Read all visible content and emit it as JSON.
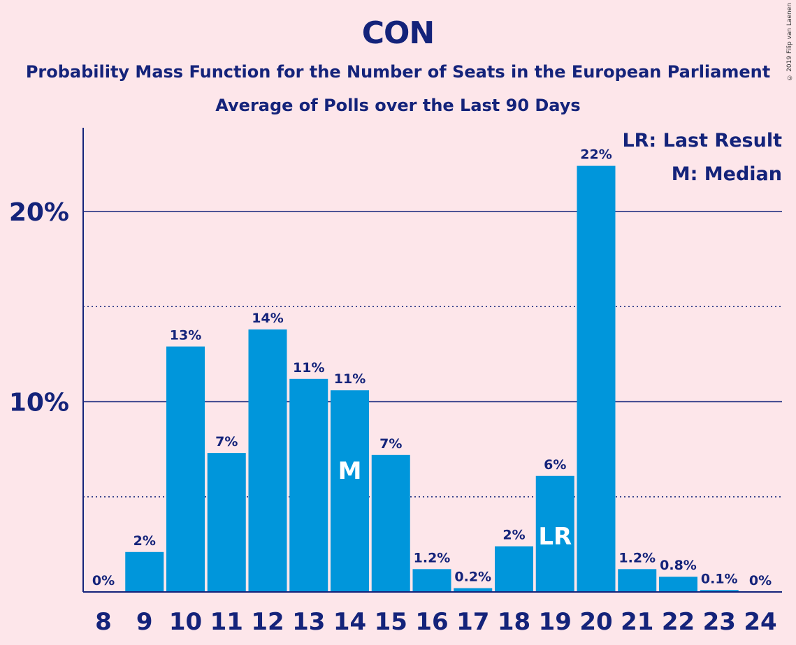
{
  "chart_data": {
    "type": "bar",
    "title": "CON",
    "subtitle": "Probability Mass Function for the Number of Seats in the European Parliament",
    "subtitle2": "Average of Polls over the Last 90 Days",
    "copyright": "© 2019 Filip van Laenen",
    "categories": [
      "8",
      "9",
      "10",
      "11",
      "12",
      "13",
      "14",
      "15",
      "16",
      "17",
      "18",
      "19",
      "20",
      "21",
      "22",
      "23",
      "24"
    ],
    "values": [
      0,
      2.1,
      12.9,
      7.3,
      13.8,
      11.2,
      10.6,
      7.2,
      1.2,
      0.2,
      2.4,
      6.1,
      22.4,
      1.2,
      0.8,
      0.1,
      0
    ],
    "data_labels": [
      "0%",
      "2%",
      "13%",
      "7%",
      "14%",
      "11%",
      "11%",
      "7%",
      "1.2%",
      "0.2%",
      "2%",
      "6%",
      "22%",
      "1.2%",
      "0.8%",
      "0.1%",
      "0%"
    ],
    "ylim": [
      0,
      24.5
    ],
    "y_major_ticks": [
      10,
      20
    ],
    "y_major_tick_labels": [
      "10%",
      "20%"
    ],
    "y_minor_gridlines": [
      5,
      15
    ],
    "median_seat": "14",
    "median_marker": "M",
    "last_result_seat": "19",
    "last_result_marker": "LR",
    "legend": [
      "LR: Last Result",
      "M: Median"
    ],
    "legend_position": "top-right",
    "bar_color": "#0096db",
    "text_color": "#14237a",
    "background_color": "#fde6ea"
  }
}
